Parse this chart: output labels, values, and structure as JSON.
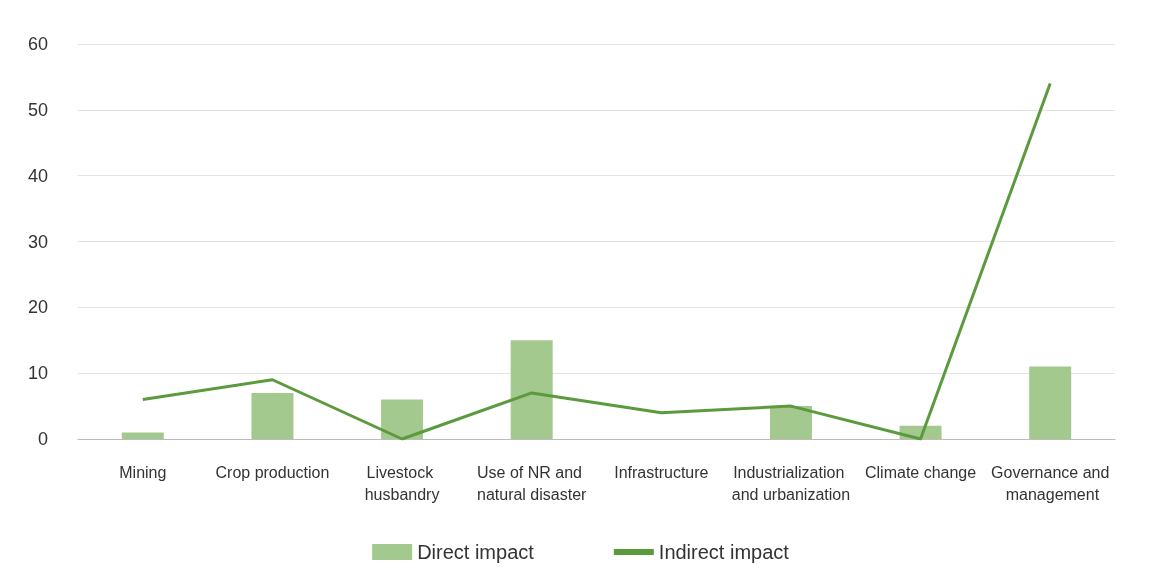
{
  "chart_data": {
    "type": "bar",
    "categories": [
      "Mining",
      "Crop production",
      "Livestock husbandry",
      "Use of NR and natural disaster",
      "Infrastructure",
      "Industrialization and urbanization",
      "Climate change",
      "Governance and management"
    ],
    "series": [
      {
        "name": "Direct impact",
        "color": "#a3c98e",
        "values": [
          1,
          7,
          6,
          15,
          0,
          5,
          2,
          11
        ]
      },
      {
        "name": "Indirect impact",
        "type": "line",
        "color": "#5c9a3e",
        "values": [
          6,
          9,
          0,
          7,
          4,
          5,
          0,
          54
        ]
      }
    ],
    "ylim": [
      0,
      60
    ],
    "yticks": [
      0,
      10,
      20,
      30,
      40,
      50,
      60
    ],
    "grid": "y",
    "legend": "bottom",
    "marker": "none",
    "line_style": "solid"
  }
}
